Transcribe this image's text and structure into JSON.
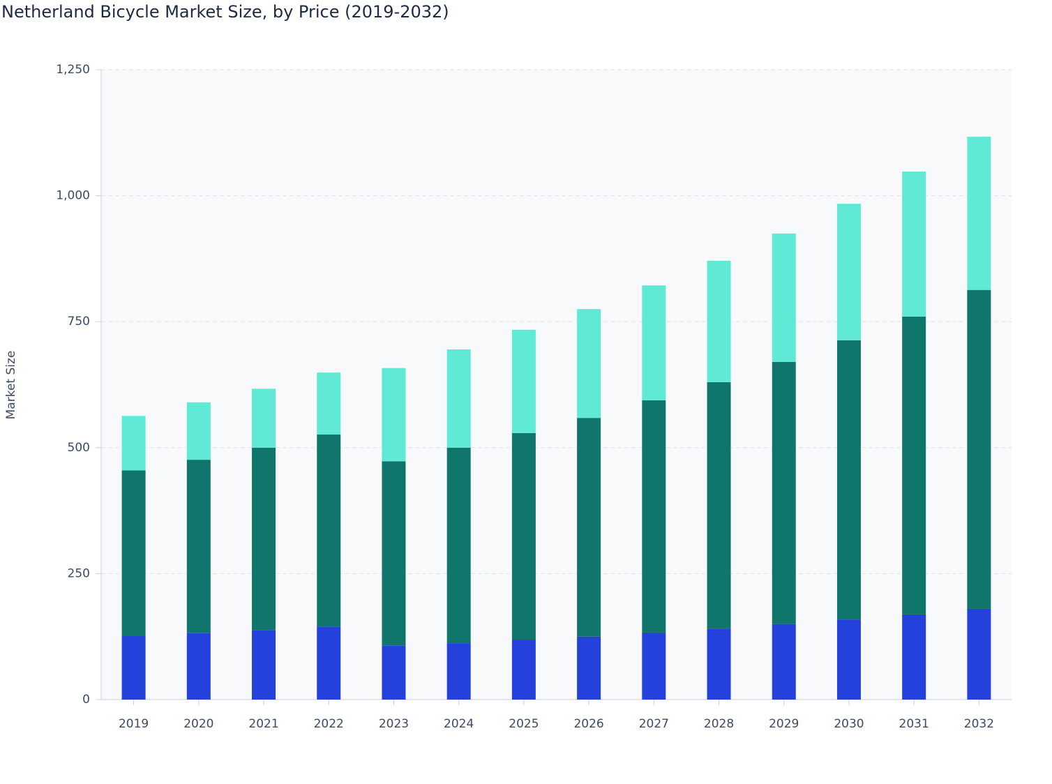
{
  "chart_data": {
    "type": "stacked_bar",
    "title": "Netherland Bicycle Market Size, by Price (2019-2032)",
    "y_label": "Market Size",
    "categories": [
      "2019",
      "2020",
      "2021",
      "2022",
      "2023",
      "2024",
      "2025",
      "2026",
      "2027",
      "2028",
      "2029",
      "2030",
      "2031",
      "2032"
    ],
    "series": [
      {
        "color": "#2541dc",
        "values": [
          126,
          132,
          138,
          145,
          107,
          112,
          119,
          125,
          133,
          141,
          150,
          159,
          169,
          180
        ]
      },
      {
        "color": "#10766c",
        "values": [
          329,
          344,
          362,
          381,
          366,
          388,
          410,
          434,
          461,
          489,
          520,
          554,
          591,
          633
        ]
      },
      {
        "color": "#60ead6",
        "values": [
          108,
          114,
          117,
          123,
          185,
          195,
          205,
          216,
          228,
          241,
          255,
          271,
          288,
          304
        ]
      }
    ],
    "ylim": [
      0,
      1250
    ],
    "yticks": [
      0,
      250,
      500,
      750,
      {
        "value": 1000,
        "label": "1,000"
      },
      {
        "value": 1250,
        "label": "1,250"
      }
    ],
    "grid": true
  }
}
